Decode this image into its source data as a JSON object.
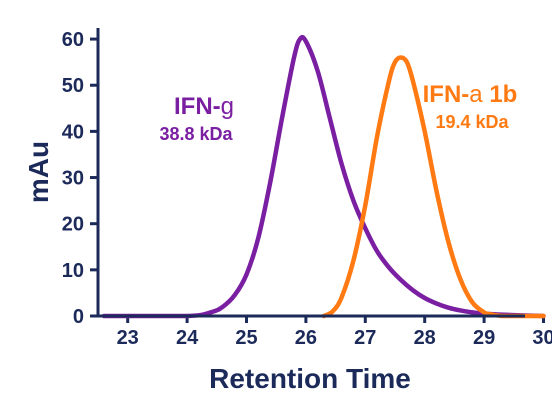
{
  "chart_data": {
    "type": "line",
    "title": "",
    "xlabel": "Retention Time",
    "ylabel": "mAu",
    "xlim": [
      22.5,
      30
    ],
    "ylim": [
      0,
      65
    ],
    "x_ticks": [
      "23",
      "24",
      "25",
      "26",
      "27",
      "28",
      "29",
      "30"
    ],
    "y_ticks": [
      "0",
      "10",
      "20",
      "30",
      "40",
      "50",
      "60"
    ],
    "grid": false,
    "legend": "none",
    "series": [
      {
        "color": "#7b1fa2",
        "label_prefix": "IFN-",
        "label_symbol": "g",
        "label_suffix": "",
        "label_sub": "38.8 kDa",
        "x": [
          22.6,
          24.0,
          24.4,
          24.6,
          24.8,
          25.0,
          25.2,
          25.4,
          25.6,
          25.8,
          25.9,
          26.0,
          26.2,
          26.4,
          26.6,
          26.8,
          27.0,
          27.2,
          27.4,
          27.6,
          27.8,
          28.0,
          28.2,
          28.4,
          28.6,
          28.8,
          29.0,
          29.5,
          30.0
        ],
        "y": [
          0,
          0,
          0.8,
          2,
          4.5,
          9,
          17,
          29,
          43,
          56,
          60,
          59.5,
          53,
          43,
          33,
          25,
          19,
          14,
          10.5,
          7.8,
          5.6,
          3.9,
          2.7,
          1.8,
          1.2,
          0.8,
          0.5,
          0.2,
          0
        ]
      },
      {
        "color": "#ff7a12",
        "label_prefix": "IFN-",
        "label_symbol": "a",
        "label_suffix": " 1b",
        "label_sub": "19.4 kDa",
        "x": [
          26.3,
          26.45,
          26.6,
          26.8,
          27.0,
          27.2,
          27.4,
          27.5,
          27.6,
          27.7,
          27.8,
          28.0,
          28.2,
          28.4,
          28.6,
          28.8,
          29.0,
          29.1,
          29.3,
          29.6,
          30.0
        ],
        "y": [
          0,
          1,
          4,
          12,
          24,
          39,
          51,
          55,
          56,
          55,
          51,
          40,
          27,
          16,
          8,
          3,
          0.8,
          0.4,
          0,
          0,
          0
        ]
      }
    ]
  }
}
